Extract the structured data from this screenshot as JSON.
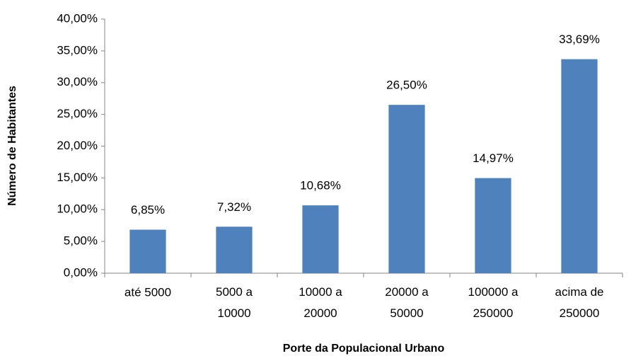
{
  "chart_data": {
    "type": "bar",
    "x_label": "Porte da Populacional Urbano",
    "y_label": "Número de Habitantes",
    "categories": [
      "até 5000",
      "5000 a 10000",
      "10000 a 20000",
      "20000 a 50000",
      "100000 a 250000",
      "acima de 250000"
    ],
    "values": [
      6.85,
      7.32,
      10.68,
      26.5,
      14.97,
      33.69
    ],
    "value_labels": [
      "6,85%",
      "7,32%",
      "10,68%",
      "26,50%",
      "14,97%",
      "33,69%"
    ],
    "color": "#4f81bd",
    "ylim": [
      0,
      40
    ],
    "yticks": [
      {
        "value": 0,
        "label": "0,00%"
      },
      {
        "value": 5,
        "label": "5,00%"
      },
      {
        "value": 10,
        "label": "10,00%"
      },
      {
        "value": 15,
        "label": "15,00%"
      },
      {
        "value": 20,
        "label": "20,00%"
      },
      {
        "value": 25,
        "label": "25,00%"
      },
      {
        "value": 30,
        "label": "30,00%"
      },
      {
        "value": 35,
        "label": "35,00%"
      },
      {
        "value": 40,
        "label": "40,00%"
      }
    ],
    "grid": false
  }
}
